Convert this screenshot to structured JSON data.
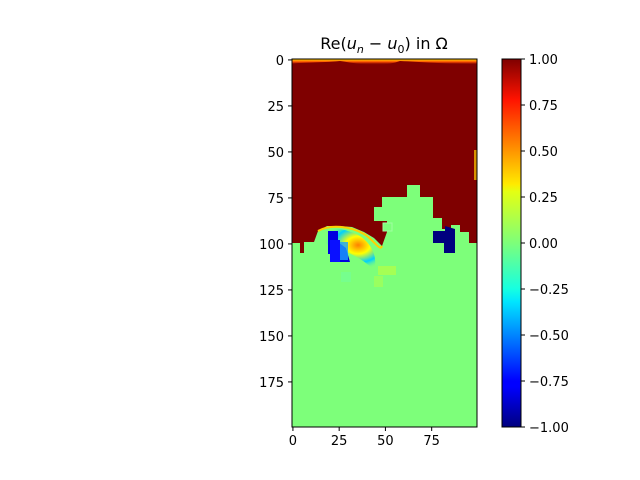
{
  "chart_data": {
    "type": "heatmap",
    "title": "Re(u_n − u_0) in Ω",
    "title_parts": {
      "prefix": "Re(",
      "u1": "u",
      "sub1": "n",
      "minus": " − ",
      "u2": "u",
      "sub2": "0",
      "suffix": ") in Ω"
    },
    "colormap": "jet",
    "x_range": [
      0,
      99
    ],
    "y_range": [
      0,
      199
    ],
    "y_inverted": true,
    "x_ticks": [
      "0",
      "25",
      "50",
      "75"
    ],
    "y_ticks": [
      "0",
      "25",
      "50",
      "75",
      "100",
      "125",
      "150",
      "175"
    ],
    "colorbar": {
      "range": [
        -1.0,
        1.0
      ],
      "ticks": [
        "1.00",
        "0.75",
        "0.50",
        "0.25",
        "0.00",
        "−0.25",
        "−0.50",
        "−0.75",
        "−1.00"
      ],
      "placement": "right"
    },
    "regions": [
      {
        "label": "upper",
        "value": 1.0
      },
      {
        "label": "lower",
        "value": 0.0
      },
      {
        "label": "dark-blue-left-block",
        "value": -0.85
      },
      {
        "label": "dark-blue-right-block",
        "value": -1.0
      }
    ]
  }
}
